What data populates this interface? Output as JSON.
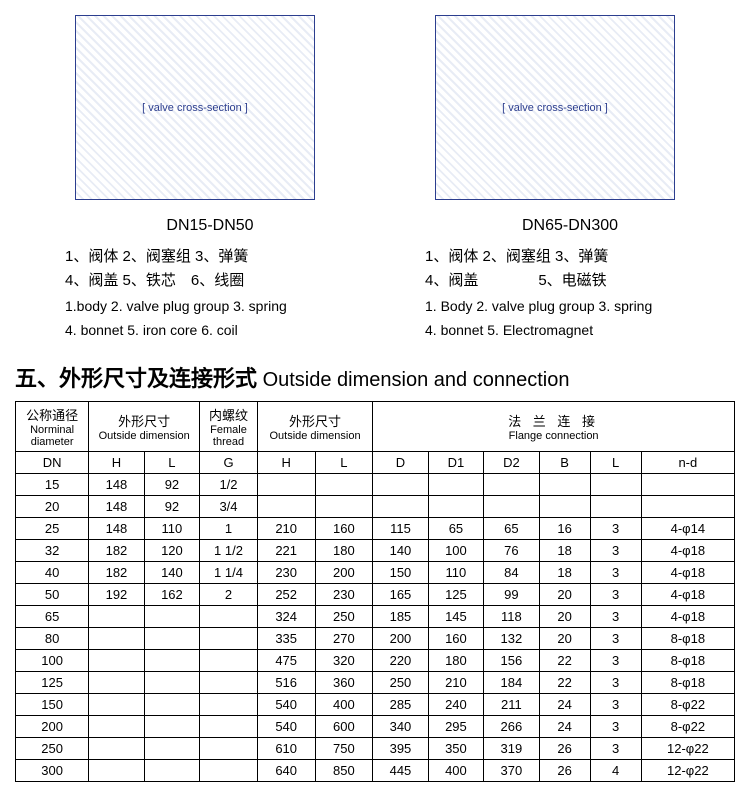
{
  "diagrams": {
    "left": {
      "model": "DN15-DN50",
      "placeholder": "[ valve cross-section ]"
    },
    "right": {
      "model": "DN65-DN300",
      "placeholder": "[ valve cross-section ]"
    }
  },
  "parts": {
    "left": {
      "cn1": "1、阀体 2、阀塞组 3、弹簧",
      "cn2": "4、阀盖 5、铁芯　6、线圈",
      "en1": "1.body  2. valve plug group  3. spring",
      "en2": "4. bonnet  5. iron core  6. coil"
    },
    "right": {
      "cn1": "1、阀体 2、阀塞组 3、弹簧",
      "cn2": "4、阀盖　　　　5、电磁铁",
      "en1": "1. Body  2. valve plug group  3. spring",
      "en2": "4. bonnet  5. Electromagnet"
    }
  },
  "section": {
    "titleCn": "五、外形尺寸及连接形式",
    "titleEn": " Outside dimension and connection"
  },
  "table": {
    "headers": {
      "nominal": {
        "cn": "公称通径",
        "en": "Norminal diameter"
      },
      "outside1": {
        "cn": "外形尺寸",
        "en": "Outside dimension"
      },
      "female": {
        "cn": "内螺纹",
        "en": "Female thread"
      },
      "outside2": {
        "cn": "外形尺寸",
        "en": "Outside dimension"
      },
      "flange": {
        "cn": "法 兰 连 接",
        "en": "Flange connection"
      },
      "sub": [
        "DN",
        "H",
        "L",
        "G",
        "H",
        "L",
        "D",
        "D1",
        "D2",
        "B",
        "L",
        "n-d"
      ]
    },
    "rows": [
      [
        "15",
        "148",
        "92",
        "1/2",
        "",
        "",
        "",
        "",
        "",
        "",
        "",
        ""
      ],
      [
        "20",
        "148",
        "92",
        "3/4",
        "",
        "",
        "",
        "",
        "",
        "",
        "",
        ""
      ],
      [
        "25",
        "148",
        "110",
        "1",
        "210",
        "160",
        "115",
        "65",
        "65",
        "16",
        "3",
        "4-φ14"
      ],
      [
        "32",
        "182",
        "120",
        "1 1/2",
        "221",
        "180",
        "140",
        "100",
        "76",
        "18",
        "3",
        "4-φ18"
      ],
      [
        "40",
        "182",
        "140",
        "1 1/4",
        "230",
        "200",
        "150",
        "110",
        "84",
        "18",
        "3",
        "4-φ18"
      ],
      [
        "50",
        "192",
        "162",
        "2",
        "252",
        "230",
        "165",
        "125",
        "99",
        "20",
        "3",
        "4-φ18"
      ],
      [
        "65",
        "",
        "",
        "",
        "324",
        "250",
        "185",
        "145",
        "118",
        "20",
        "3",
        "4-φ18"
      ],
      [
        "80",
        "",
        "",
        "",
        "335",
        "270",
        "200",
        "160",
        "132",
        "20",
        "3",
        "8-φ18"
      ],
      [
        "100",
        "",
        "",
        "",
        "475",
        "320",
        "220",
        "180",
        "156",
        "22",
        "3",
        "8-φ18"
      ],
      [
        "125",
        "",
        "",
        "",
        "516",
        "360",
        "250",
        "210",
        "184",
        "22",
        "3",
        "8-φ18"
      ],
      [
        "150",
        "",
        "",
        "",
        "540",
        "400",
        "285",
        "240",
        "211",
        "24",
        "3",
        "8-φ22"
      ],
      [
        "200",
        "",
        "",
        "",
        "540",
        "600",
        "340",
        "295",
        "266",
        "24",
        "3",
        "8-φ22"
      ],
      [
        "250",
        "",
        "",
        "",
        "610",
        "750",
        "395",
        "350",
        "319",
        "26",
        "3",
        "12-φ22"
      ],
      [
        "300",
        "",
        "",
        "",
        "640",
        "850",
        "445",
        "400",
        "370",
        "26",
        "4",
        "12-φ22"
      ]
    ]
  }
}
